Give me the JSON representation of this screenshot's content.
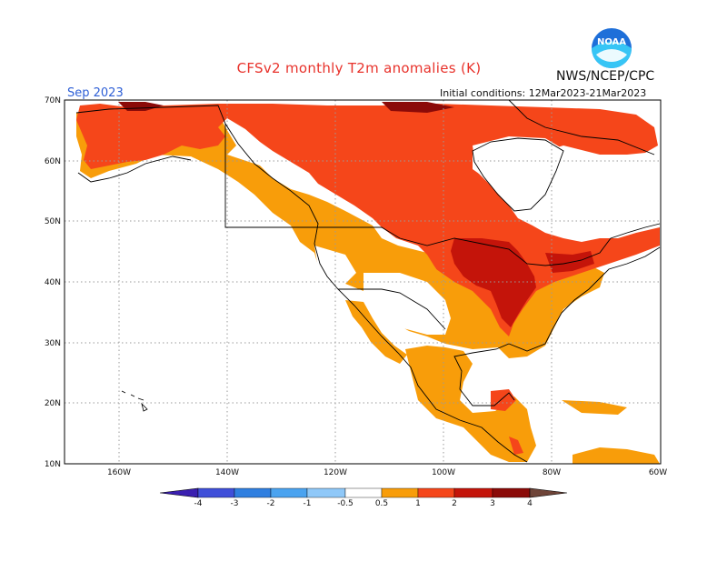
{
  "header": {
    "title": "CFSv2 monthly T2m anomalies (K)",
    "organization": "NWS/NCEP/CPC",
    "month": "Sep 2023",
    "initial_conditions": "Initial conditions: 12Mar2023-21Mar2023",
    "logo_text": "NOAA"
  },
  "axes": {
    "lat_labels": [
      "70N",
      "60N",
      "50N",
      "40N",
      "30N",
      "20N",
      "10N"
    ],
    "lon_labels": [
      "160W",
      "140W",
      "120W",
      "100W",
      "80W",
      "60W"
    ]
  },
  "legend": {
    "labels": [
      "-4",
      "-3",
      "-2",
      "-1",
      "-0.5",
      "0.5",
      "1",
      "2",
      "3",
      "4"
    ],
    "colors": [
      "#3a1fb0",
      "#3f4fd9",
      "#2f7fe0",
      "#4aa3f0",
      "#8fc8f8",
      "#ffffff",
      "#f89d0a",
      "#f5461a",
      "#c4140a",
      "#8b0a08",
      "#c9a090",
      "#6e4438"
    ]
  },
  "map_colors": {
    "orange": "#f89d0a",
    "red": "#f5461a",
    "darkred": "#c4140a",
    "maroon": "#8b0a08"
  }
}
